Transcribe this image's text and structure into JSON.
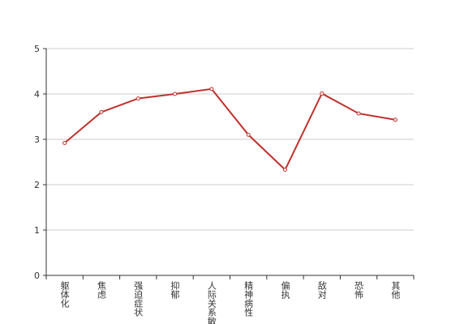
{
  "chart_data": {
    "type": "line",
    "categories": [
      "躯体化",
      "焦虑",
      "强迫症状",
      "抑郁",
      "人际关系敏感",
      "精神病性",
      "偏执",
      "敌对",
      "恐怖",
      "其他"
    ],
    "series": [
      {
        "color": "#c0312d",
        "values": [
          2.92,
          3.6,
          3.9,
          4.0,
          4.11,
          3.1,
          2.33,
          4.01,
          3.57,
          3.43
        ]
      }
    ],
    "ylim": [
      0,
      5
    ],
    "yticks": [
      0,
      1,
      2,
      3,
      4,
      5
    ],
    "grid": true
  }
}
